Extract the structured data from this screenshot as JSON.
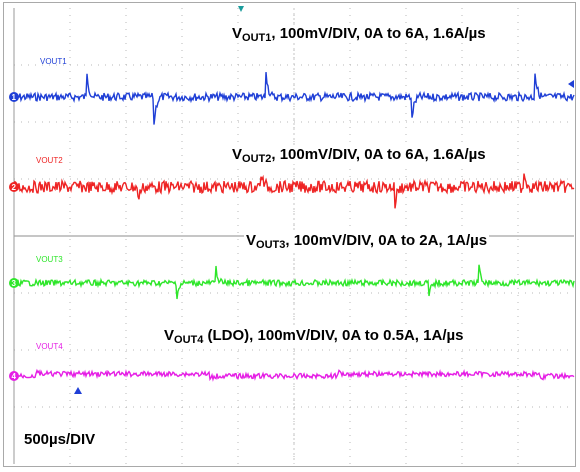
{
  "chart_data": {
    "type": "line",
    "title": "",
    "time_base": "500µs/DIV",
    "grid": true,
    "divisions": {
      "horizontal": 10,
      "vertical": 8
    },
    "colors": {
      "ch1": "#1f3fd6",
      "ch2": "#ee2424",
      "ch3": "#2ee62a",
      "ch4": "#e51ee5",
      "grid": "#b9b9b9"
    },
    "series": [
      {
        "channel_tag": "VOUT1",
        "label_main": "V",
        "label_sub": "OUT1",
        "label_rest": ", 100mV/DIV, 0A to 6A, 1.6A/µs",
        "color": "#1f3fd6",
        "marker": "1",
        "transients_us": [
          {
            "t": 650,
            "dir": 1
          },
          {
            "t": 1250,
            "dir": -1
          },
          {
            "t": 2250,
            "dir": 1
          },
          {
            "t": 3550,
            "dir": -1
          },
          {
            "t": 4650,
            "dir": 1
          }
        ]
      },
      {
        "channel_tag": "VOUT2",
        "label_main": "V",
        "label_sub": "OUT2",
        "label_rest": ", 100mV/DIV, 0A to 6A, 1.6A/µs",
        "color": "#ee2424",
        "marker": "2",
        "transients_us": [
          {
            "t": 1100,
            "dir": -1
          },
          {
            "t": 2200,
            "dir": 1
          },
          {
            "t": 3400,
            "dir": -1
          },
          {
            "t": 4550,
            "dir": 1
          }
        ]
      },
      {
        "channel_tag": "VOUT3",
        "label_main": "V",
        "label_sub": "OUT3",
        "label_rest": ", 100mV/DIV, 0A to 2A, 1A/µs",
        "color": "#2ee62a",
        "marker": "3",
        "transients_us": [
          {
            "t": 1450,
            "dir": -1
          },
          {
            "t": 1800,
            "dir": 1
          },
          {
            "t": 3700,
            "dir": -1
          },
          {
            "t": 4150,
            "dir": 1
          }
        ]
      },
      {
        "channel_tag": "VOUT4",
        "label_main": "V",
        "label_sub": "OUT4",
        "label_rest": " (LDO), 100mV/DIV, 0A to 0.5A, 1A/µs",
        "color": "#e51ee5",
        "marker": "4",
        "transients_us": [
          {
            "t": 200,
            "dir": 1
          },
          {
            "t": 1750,
            "dir": -1
          },
          {
            "t": 2900,
            "dir": 1
          },
          {
            "t": 4700,
            "dir": -1
          }
        ]
      }
    ]
  }
}
